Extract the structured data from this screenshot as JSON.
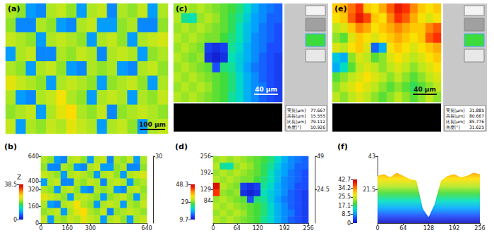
{
  "chart_data": [
    {
      "type": "heatmap",
      "panel": "(a)",
      "scale_bar": "100 μm",
      "color_range": [
        0,
        38.5
      ],
      "cells": [
        [
          21,
          20,
          8,
          7,
          21,
          22,
          20,
          8,
          21,
          22,
          7,
          21,
          20,
          22,
          8,
          21
        ],
        [
          20,
          7,
          7,
          21,
          20,
          8,
          7,
          21,
          22,
          8,
          8,
          20,
          21,
          7,
          7,
          20
        ],
        [
          22,
          21,
          20,
          8,
          21,
          22,
          21,
          20,
          8,
          21,
          22,
          20,
          8,
          21,
          22,
          23
        ],
        [
          8,
          21,
          22,
          7,
          7,
          21,
          20,
          22,
          21,
          7,
          21,
          22,
          21,
          8,
          20,
          21
        ],
        [
          21,
          20,
          8,
          21,
          22,
          20,
          8,
          7,
          21,
          20,
          21,
          8,
          7,
          21,
          22,
          20
        ],
        [
          24,
          22,
          21,
          20,
          8,
          21,
          22,
          21,
          20,
          8,
          20,
          21,
          22,
          20,
          8,
          21
        ],
        [
          21,
          8,
          7,
          21,
          22,
          25,
          21,
          20,
          8,
          21,
          22,
          21,
          8,
          21,
          20,
          22
        ],
        [
          20,
          21,
          22,
          8,
          21,
          24,
          26,
          21,
          20,
          22,
          7,
          20,
          21,
          22,
          21,
          20
        ],
        [
          22,
          8,
          21,
          20,
          22,
          21,
          24,
          22,
          21,
          8,
          21,
          22,
          20,
          8,
          21,
          22
        ]
      ]
    },
    {
      "type": "heatmap",
      "panel": "(b)",
      "xlim": [
        0,
        640
      ],
      "xticks": [
        0,
        160,
        300,
        640
      ],
      "ylim": [
        0,
        640
      ],
      "yticks": [
        0,
        160,
        320,
        400,
        640
      ],
      "zlim": [
        0,
        30
      ],
      "zticks": [
        30
      ],
      "z_label": "Z",
      "colorbar": {
        "range": [
          0,
          38.5
        ],
        "ticks": [
          0,
          38.5
        ]
      },
      "cells": [
        [
          21,
          20,
          8,
          7,
          21,
          22,
          20,
          8,
          21,
          22,
          7,
          21,
          20,
          22,
          8,
          21
        ],
        [
          20,
          7,
          7,
          21,
          20,
          8,
          7,
          21,
          22,
          8,
          8,
          20,
          21,
          7,
          7,
          20
        ],
        [
          22,
          21,
          20,
          8,
          21,
          22,
          21,
          20,
          8,
          21,
          22,
          20,
          8,
          21,
          22,
          23
        ],
        [
          8,
          21,
          22,
          7,
          7,
          21,
          20,
          22,
          21,
          7,
          21,
          22,
          21,
          8,
          20,
          21
        ],
        [
          21,
          20,
          8,
          21,
          22,
          20,
          8,
          7,
          21,
          20,
          21,
          8,
          7,
          21,
          22,
          20
        ],
        [
          24,
          22,
          21,
          20,
          8,
          21,
          22,
          21,
          20,
          8,
          20,
          21,
          22,
          20,
          8,
          21
        ],
        [
          21,
          8,
          7,
          21,
          22,
          25,
          21,
          20,
          8,
          21,
          22,
          21,
          8,
          21,
          20,
          22
        ],
        [
          20,
          21,
          22,
          8,
          21,
          24,
          26,
          21,
          20,
          22,
          7,
          20,
          21,
          22,
          21,
          20
        ],
        [
          22,
          8,
          21,
          20,
          22,
          21,
          24,
          22,
          21,
          8,
          21,
          22,
          20,
          8,
          21,
          22
        ]
      ]
    },
    {
      "type": "heatmap",
      "panel": "(c)",
      "scale_bar": "40 μm",
      "color_range": [
        9.7,
        48.3
      ],
      "readout": [
        {
          "label": "実長[μm]",
          "value": 77.667
        },
        {
          "label": "高長[μm]",
          "value": 15.555
        },
        {
          "label": "比長[μm]",
          "value": 79.112
        },
        {
          "label": "角度[°]",
          "value": 10.926
        }
      ],
      "cells": [
        [
          30,
          31,
          30,
          31,
          30,
          29,
          28,
          27,
          25,
          22,
          19,
          17,
          16,
          15
        ],
        [
          31,
          24,
          23,
          30,
          31,
          30,
          28,
          26,
          24,
          21,
          18,
          17,
          15,
          15
        ],
        [
          30,
          31,
          30,
          31,
          30,
          29,
          28,
          26,
          23,
          20,
          18,
          16,
          15,
          14
        ],
        [
          31,
          30,
          31,
          30,
          29,
          29,
          27,
          25,
          23,
          20,
          17,
          16,
          15,
          14
        ],
        [
          30,
          31,
          30,
          29,
          13,
          12,
          13,
          24,
          22,
          19,
          17,
          16,
          14,
          14
        ],
        [
          31,
          30,
          29,
          30,
          12,
          11,
          12,
          23,
          21,
          19,
          17,
          15,
          14,
          13
        ],
        [
          30,
          31,
          30,
          29,
          28,
          14,
          25,
          24,
          21,
          18,
          16,
          15,
          14,
          13
        ],
        [
          31,
          30,
          31,
          30,
          29,
          28,
          27,
          25,
          22,
          19,
          17,
          15,
          14,
          13
        ],
        [
          30,
          31,
          30,
          31,
          30,
          28,
          27,
          25,
          22,
          19,
          17,
          16,
          14,
          13
        ],
        [
          31,
          30,
          31,
          30,
          29,
          28,
          27,
          24,
          22,
          19,
          17,
          15,
          14,
          13
        ]
      ]
    },
    {
      "type": "heatmap",
      "panel": "(d)",
      "xlim": [
        0,
        256
      ],
      "xticks": [
        0,
        64,
        120,
        192,
        256
      ],
      "ylim": [
        0,
        256
      ],
      "yticks": [
        84,
        129,
        192,
        256
      ],
      "zlim": [
        0,
        49
      ],
      "zticks": [
        24.5,
        49
      ],
      "colorbar": {
        "range": [
          9.7,
          48.3
        ],
        "ticks": [
          9.7,
          29,
          48.3
        ]
      },
      "cells": [
        [
          30,
          31,
          30,
          31,
          30,
          29,
          28,
          27,
          25,
          22,
          19,
          17,
          16,
          15
        ],
        [
          31,
          24,
          23,
          30,
          31,
          30,
          28,
          26,
          24,
          21,
          18,
          17,
          15,
          15
        ],
        [
          30,
          31,
          30,
          31,
          30,
          29,
          28,
          26,
          23,
          20,
          18,
          16,
          15,
          14
        ],
        [
          31,
          30,
          31,
          30,
          29,
          29,
          27,
          25,
          23,
          20,
          17,
          16,
          15,
          14
        ],
        [
          47,
          31,
          30,
          29,
          13,
          12,
          13,
          24,
          22,
          19,
          17,
          16,
          14,
          14
        ],
        [
          44,
          30,
          29,
          30,
          12,
          11,
          12,
          23,
          21,
          19,
          17,
          15,
          14,
          13
        ],
        [
          30,
          31,
          30,
          29,
          28,
          14,
          25,
          24,
          21,
          18,
          16,
          15,
          14,
          13
        ],
        [
          31,
          30,
          31,
          30,
          29,
          28,
          27,
          25,
          22,
          19,
          17,
          15,
          14,
          13
        ],
        [
          30,
          31,
          30,
          31,
          30,
          28,
          27,
          25,
          22,
          19,
          17,
          16,
          14,
          13
        ],
        [
          31,
          30,
          31,
          30,
          29,
          28,
          27,
          24,
          22,
          19,
          17,
          15,
          14,
          13
        ]
      ]
    },
    {
      "type": "heatmap",
      "panel": "(e)",
      "scale_bar": "40 μm",
      "color_range": [
        0,
        42.7
      ],
      "readout": [
        {
          "label": "実長[μm]",
          "value": 31.885
        },
        {
          "label": "高長[μm]",
          "value": 80.667
        },
        {
          "label": "比長[μm]",
          "value": 85.776
        },
        {
          "label": "角度[°]",
          "value": 31.625
        }
      ],
      "cells": [
        [
          30,
          32,
          35,
          38,
          30,
          28,
          32,
          36,
          40,
          38,
          34,
          30,
          28,
          30
        ],
        [
          28,
          30,
          36,
          40,
          37,
          30,
          28,
          34,
          38,
          36,
          32,
          28,
          26,
          28
        ],
        [
          24,
          26,
          30,
          34,
          32,
          28,
          30,
          32,
          34,
          32,
          30,
          30,
          34,
          36
        ],
        [
          22,
          20,
          26,
          30,
          28,
          26,
          28,
          30,
          32,
          30,
          28,
          30,
          36,
          38
        ],
        [
          26,
          24,
          28,
          30,
          26,
          6,
          10,
          28,
          30,
          28,
          26,
          28,
          30,
          32
        ],
        [
          12,
          10,
          22,
          26,
          24,
          20,
          22,
          26,
          28,
          26,
          24,
          26,
          28,
          30
        ],
        [
          10,
          14,
          20,
          24,
          26,
          24,
          22,
          24,
          26,
          24,
          22,
          24,
          26,
          28
        ],
        [
          20,
          22,
          24,
          26,
          28,
          26,
          24,
          22,
          24,
          22,
          20,
          22,
          24,
          26
        ],
        [
          22,
          24,
          26,
          28,
          26,
          24,
          22,
          20,
          22,
          20,
          18,
          20,
          22,
          24
        ],
        [
          24,
          22,
          24,
          26,
          24,
          22,
          20,
          22,
          24,
          22,
          20,
          22,
          24,
          22
        ]
      ]
    },
    {
      "type": "line",
      "panel": "(f)",
      "xlim": [
        0,
        256
      ],
      "xticks": [
        0,
        64,
        128,
        192,
        256
      ],
      "ylim": [
        0,
        43
      ],
      "yticks": [
        21.5,
        43
      ],
      "colorbar": {
        "range": [
          0,
          42.7
        ],
        "ticks": [
          0,
          8.5,
          17.1,
          25.5,
          34.2,
          42.7
        ]
      },
      "x": [
        0,
        16,
        32,
        48,
        64,
        80,
        96,
        112,
        128,
        144,
        160,
        176,
        192,
        208,
        224,
        240,
        256
      ],
      "values": [
        30,
        31,
        29,
        32,
        30,
        28,
        27,
        9,
        3,
        12,
        27,
        30,
        31,
        29,
        30,
        32,
        31
      ]
    }
  ]
}
